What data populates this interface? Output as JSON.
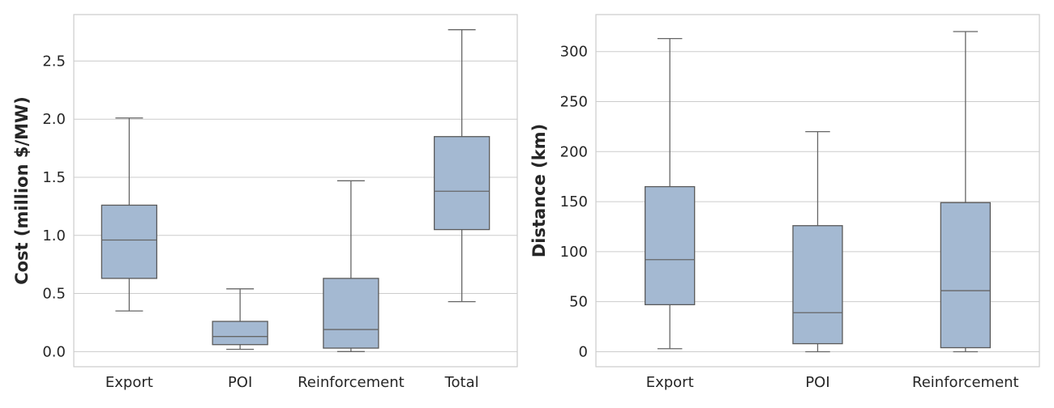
{
  "chart_data": [
    {
      "type": "box",
      "ylabel": "Cost (million $/MW)",
      "ylim": [
        -0.13,
        2.9
      ],
      "yticks": [
        "0.0",
        "0.5",
        "1.0",
        "1.5",
        "2.0",
        "2.5"
      ],
      "grid": true,
      "box_color": "#a4b9d2",
      "categories": [
        "Export",
        "POI",
        "Reinforcement",
        "Total"
      ],
      "boxes": [
        {
          "whisker_low": 0.35,
          "q1": 0.63,
          "median": 0.96,
          "q3": 1.26,
          "whisker_high": 2.01
        },
        {
          "whisker_low": 0.02,
          "q1": 0.06,
          "median": 0.13,
          "q3": 0.26,
          "whisker_high": 0.54
        },
        {
          "whisker_low": 0.0,
          "q1": 0.03,
          "median": 0.19,
          "q3": 0.63,
          "whisker_high": 1.47
        },
        {
          "whisker_low": 0.43,
          "q1": 1.05,
          "median": 1.38,
          "q3": 1.85,
          "whisker_high": 2.77
        }
      ]
    },
    {
      "type": "box",
      "ylabel": "Distance (km)",
      "ylim": [
        -15,
        337
      ],
      "yticks": [
        "0",
        "50",
        "100",
        "150",
        "200",
        "250",
        "300"
      ],
      "grid": true,
      "box_color": "#a4b9d2",
      "categories": [
        "Export",
        "POI",
        "Reinforcement"
      ],
      "boxes": [
        {
          "whisker_low": 3,
          "q1": 47,
          "median": 92,
          "q3": 165,
          "whisker_high": 313
        },
        {
          "whisker_low": 0,
          "q1": 8,
          "median": 39,
          "q3": 126,
          "whisker_high": 220
        },
        {
          "whisker_low": 0,
          "q1": 4,
          "median": 61,
          "q3": 149,
          "whisker_high": 320
        }
      ]
    }
  ]
}
